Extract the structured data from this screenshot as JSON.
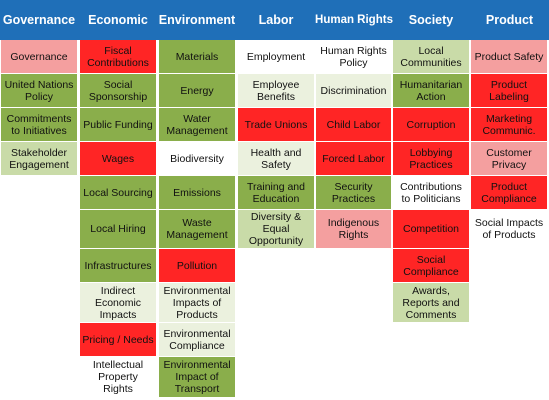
{
  "headers": [
    "Governance",
    "Economic",
    "Environment",
    "Labor",
    "Human Rights",
    "Society",
    "Product"
  ],
  "columns": [
    {
      "name": "governance",
      "cells": [
        {
          "text": "Governance",
          "color": "#f49f9f"
        },
        {
          "text": "United Nations Policy",
          "color": "#8aae4b"
        },
        {
          "text": "Commitments to Initiatives",
          "color": "#8aae4b"
        },
        {
          "text": "Stakeholder Engagement",
          "color": "#c9dba8"
        }
      ]
    },
    {
      "name": "economic",
      "cells": [
        {
          "text": "Fiscal Contributions",
          "color": "#ff2525"
        },
        {
          "text": "Social Sponsorship",
          "color": "#8aae4b"
        },
        {
          "text": "Public Funding",
          "color": "#8aae4b"
        },
        {
          "text": "Wages",
          "color": "#ff2525"
        },
        {
          "text": "Local Sourcing",
          "color": "#8aae4b"
        },
        {
          "text": "Local Hiring",
          "color": "#8aae4b"
        },
        {
          "text": "Infrastructures",
          "color": "#8aae4b"
        },
        {
          "text": "Indirect Economic Impacts",
          "color": "#ebf1de"
        },
        {
          "text": "Pricing / Needs",
          "color": "#ff2525"
        },
        {
          "text": "Intellectual Property Rights",
          "color": "#ffffff"
        }
      ]
    },
    {
      "name": "environment",
      "cells": [
        {
          "text": "Materials",
          "color": "#8aae4b"
        },
        {
          "text": "Energy",
          "color": "#8aae4b"
        },
        {
          "text": "Water Management",
          "color": "#8aae4b"
        },
        {
          "text": "Biodiversity",
          "color": "#ffffff"
        },
        {
          "text": "Emissions",
          "color": "#8aae4b"
        },
        {
          "text": "Waste Management",
          "color": "#8aae4b"
        },
        {
          "text": "Pollution",
          "color": "#ff2525"
        },
        {
          "text": "Environmental Impacts of Products",
          "color": "#ebf1de"
        },
        {
          "text": "Environmental Compliance",
          "color": "#ebf1de"
        },
        {
          "text": "Environmental Impact of Transport",
          "color": "#8aae4b"
        }
      ]
    },
    {
      "name": "labor",
      "cells": [
        {
          "text": "Employment",
          "color": "#ffffff"
        },
        {
          "text": "Employee Benefits",
          "color": "#ebf1de"
        },
        {
          "text": "Trade Unions",
          "color": "#ff2525"
        },
        {
          "text": "Health and Safety",
          "color": "#ebf1de"
        },
        {
          "text": "Training and Education",
          "color": "#8aae4b"
        },
        {
          "text": "Diversity & Equal Opportunity",
          "color": "#c9dba8"
        }
      ]
    },
    {
      "name": "human-rights",
      "cells": [
        {
          "text": "Human Rights Policy",
          "color": "#ffffff"
        },
        {
          "text": "Discrimination",
          "color": "#ebf1de"
        },
        {
          "text": "Child Labor",
          "color": "#ff2525"
        },
        {
          "text": "Forced Labor",
          "color": "#ff2525"
        },
        {
          "text": "Security Practices",
          "color": "#8aae4b"
        },
        {
          "text": "Indigenous Rights",
          "color": "#f49f9f"
        }
      ]
    },
    {
      "name": "society",
      "cells": [
        {
          "text": "Local Communities",
          "color": "#c9dba8"
        },
        {
          "text": "Humanitarian Action",
          "color": "#8aae4b"
        },
        {
          "text": "Corruption",
          "color": "#ff2525"
        },
        {
          "text": "Lobbying Practices",
          "color": "#ff2525"
        },
        {
          "text": "Contributions to Politicians",
          "color": "#ffffff"
        },
        {
          "text": "Competition",
          "color": "#ff2525"
        },
        {
          "text": "Social Compliance",
          "color": "#ff2525"
        },
        {
          "text": "Awards, Reports and Comments",
          "color": "#c9dba8"
        }
      ]
    },
    {
      "name": "product",
      "cells": [
        {
          "text": "Product Safety",
          "color": "#f49f9f"
        },
        {
          "text": "Product Labeling",
          "color": "#ff2525"
        },
        {
          "text": "Marketing Communic.",
          "color": "#ff2525"
        },
        {
          "text": "Customer Privacy",
          "color": "#f49f9f"
        },
        {
          "text": "Product Compliance",
          "color": "#ff2525"
        },
        {
          "text": "Social Impacts of Products",
          "color": "#ffffff"
        }
      ]
    }
  ]
}
